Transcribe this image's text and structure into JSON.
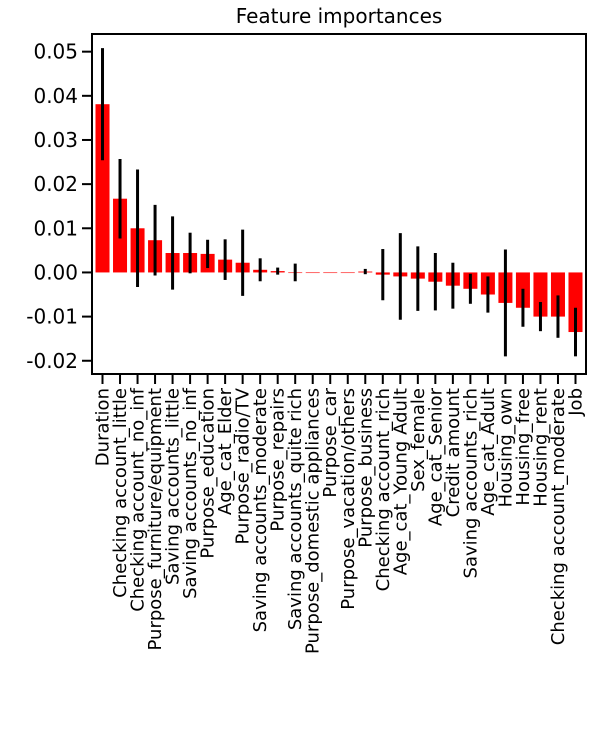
{
  "chart_data": {
    "type": "bar",
    "title": "Feature importances",
    "xlabel": "",
    "ylabel": "",
    "ylim": [
      -0.023,
      0.054
    ],
    "yticks": [
      -0.02,
      -0.01,
      0.0,
      0.01,
      0.02,
      0.03,
      0.04,
      0.05
    ],
    "ytick_labels": [
      "-0.02",
      "-0.01",
      "0.00",
      "0.01",
      "0.02",
      "0.03",
      "0.04",
      "0.05"
    ],
    "grid": false,
    "bar_color": "#ff0000",
    "error_color": "#000000",
    "categories": [
      "Duration",
      "Checking account_little",
      "Checking account_no_inf",
      "Purpose_furniture/equipment",
      "Saving accounts_little",
      "Saving accounts_no_inf",
      "Purpose_education",
      "Age_cat_Elder",
      "Purpose_radio/TV",
      "Saving accounts_moderate",
      "Purpose_repairs",
      "Saving accounts_quite rich",
      "Purpose_domestic appliances",
      "Purpose_car",
      "Purpose_vacation/others",
      "Purpose_business",
      "Checking account_rich",
      "Age_cat_Young Adult",
      "Sex_female",
      "Age_cat_Senior",
      "Credit amount",
      "Saving accounts_rich",
      "Age_cat_Adult",
      "Housing_own",
      "Housing_free",
      "Housing_rent",
      "Checking account_moderate",
      "Job"
    ],
    "values": [
      0.0381,
      0.0167,
      0.01,
      0.0073,
      0.0044,
      0.0044,
      0.0042,
      0.0029,
      0.0022,
      0.0006,
      0.0003,
      0.0,
      0.0,
      0.0,
      0.0,
      0.0002,
      -0.0005,
      -0.0009,
      -0.0014,
      -0.0021,
      -0.003,
      -0.0037,
      -0.005,
      -0.0069,
      -0.008,
      -0.01,
      -0.01,
      -0.0135
    ],
    "errors": [
      0.0127,
      0.009,
      0.0133,
      0.008,
      0.0083,
      0.0046,
      0.0032,
      0.0046,
      0.0075,
      0.0026,
      0.0008,
      0.002,
      0.0,
      0.0,
      0.0,
      0.0006,
      0.0058,
      0.0098,
      0.0073,
      0.0065,
      0.0052,
      0.0034,
      0.0041,
      0.0121,
      0.0043,
      0.0033,
      0.0048,
      0.0055
    ]
  }
}
